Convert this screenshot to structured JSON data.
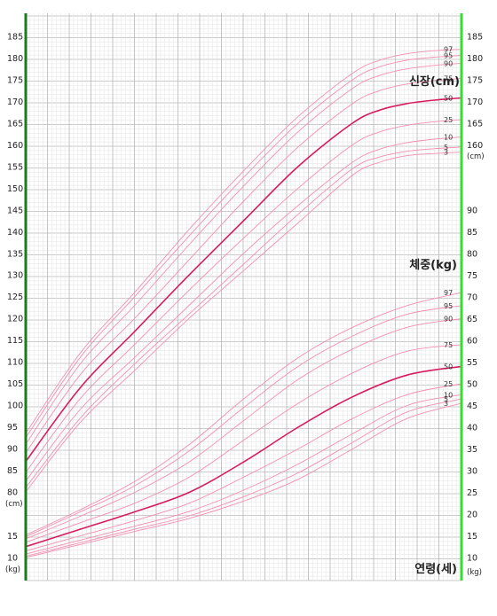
{
  "chart_data": {
    "type": "line",
    "title": "",
    "height_title": "신장(cm)",
    "weight_title": "체중(kg)",
    "age_title": "연령(세)",
    "height_unit": "(cm)",
    "weight_unit": "(kg)",
    "x_range_age_years": [
      2,
      18
    ],
    "height_axis": {
      "range": [
        80,
        185
      ],
      "left_ticks": [
        80,
        85,
        90,
        95,
        100,
        105,
        110,
        115,
        120,
        125,
        130,
        135,
        140,
        145,
        150,
        155,
        160,
        165,
        170,
        175,
        180,
        185
      ],
      "right_ticks": [
        160,
        165,
        170,
        175,
        180,
        185
      ]
    },
    "weight_axis": {
      "range": [
        10,
        90
      ],
      "left_ticks": [
        10,
        15
      ],
      "right_ticks": [
        10,
        15,
        20,
        25,
        30,
        35,
        40,
        45,
        50,
        55,
        60,
        65,
        70,
        75,
        80,
        85,
        90
      ]
    },
    "grid": true,
    "colors": {
      "median": "#d81b60",
      "percentile": "#f48fb1",
      "left_border": "#1b7a1b",
      "right_border": "#33dd33",
      "grid_major": "#b8b8b8",
      "grid_minor": "#e3e3e3"
    },
    "percentile_labels": [
      "3",
      "5",
      "10",
      "25",
      "50",
      "75",
      "90",
      "95",
      "97"
    ],
    "height_series": [
      {
        "name": "3",
        "x": [
          2,
          4,
          6,
          8,
          10,
          12,
          14,
          15,
          16,
          17,
          18
        ],
        "values": [
          80,
          96,
          108,
          120,
          131,
          142,
          153,
          156,
          157.5,
          158,
          158.3
        ]
      },
      {
        "name": "5",
        "x": [
          2,
          4,
          6,
          8,
          10,
          12,
          14,
          15,
          16,
          17,
          18
        ],
        "values": [
          81,
          97,
          109.5,
          121,
          132.5,
          144,
          154.5,
          157.2,
          158.5,
          159.1,
          159.5
        ]
      },
      {
        "name": "10",
        "x": [
          2,
          4,
          6,
          8,
          10,
          12,
          14,
          15,
          16,
          17,
          18
        ],
        "values": [
          82.5,
          99,
          111,
          123,
          135,
          146,
          156,
          159,
          160.5,
          161.3,
          161.8
        ]
      },
      {
        "name": "25",
        "x": [
          2,
          4,
          6,
          8,
          10,
          12,
          14,
          15,
          16,
          17,
          18
        ],
        "values": [
          84.5,
          101.5,
          114,
          126.5,
          138.5,
          150,
          160,
          163,
          164.5,
          165.3,
          165.8
        ]
      },
      {
        "name": "50",
        "x": [
          2,
          4,
          6,
          8,
          10,
          12,
          14,
          15,
          16,
          17,
          18
        ],
        "values": [
          87,
          104,
          117,
          130,
          142.5,
          155,
          165,
          168,
          169.5,
          170.3,
          170.8
        ]
      },
      {
        "name": "75",
        "x": [
          2,
          4,
          6,
          8,
          10,
          12,
          14,
          15,
          16,
          17,
          18
        ],
        "values": [
          89,
          107,
          120,
          133.5,
          147,
          159.5,
          169.5,
          172.5,
          174,
          174.8,
          175.3
        ]
      },
      {
        "name": "90",
        "x": [
          2,
          4,
          6,
          8,
          10,
          12,
          14,
          15,
          16,
          17,
          18
        ],
        "values": [
          91,
          109.5,
          123,
          137,
          150.5,
          163,
          173,
          176,
          177.5,
          178.3,
          178.8
        ]
      },
      {
        "name": "95",
        "x": [
          2,
          4,
          6,
          8,
          10,
          12,
          14,
          15,
          16,
          17,
          18
        ],
        "values": [
          92.5,
          111,
          125,
          139,
          152.5,
          165,
          175,
          178,
          179.5,
          180.2,
          180.6
        ]
      },
      {
        "name": "97",
        "x": [
          2,
          4,
          6,
          8,
          10,
          12,
          14,
          15,
          16,
          17,
          18
        ],
        "values": [
          93.5,
          112,
          126,
          140.5,
          154,
          166.5,
          176.5,
          179.5,
          181,
          181.7,
          182
        ]
      }
    ],
    "weight_series": [
      {
        "name": "3",
        "x": [
          2,
          4,
          6,
          8,
          10,
          12,
          14,
          16,
          18
        ],
        "values": [
          10,
          13,
          16,
          19,
          23,
          28,
          35,
          42,
          45.5
        ]
      },
      {
        "name": "5",
        "x": [
          2,
          4,
          6,
          8,
          10,
          12,
          14,
          16,
          18
        ],
        "values": [
          10.3,
          13.4,
          16.5,
          19.6,
          24,
          29.5,
          36.5,
          43.5,
          46.5
        ]
      },
      {
        "name": "10",
        "x": [
          2,
          4,
          6,
          8,
          10,
          12,
          14,
          16,
          18
        ],
        "values": [
          10.8,
          14,
          17.2,
          20.6,
          25.5,
          31.5,
          38.5,
          45,
          47.5
        ]
      },
      {
        "name": "25",
        "x": [
          2,
          4,
          6,
          8,
          10,
          12,
          14,
          16,
          18
        ],
        "values": [
          11.5,
          15,
          18.5,
          22.5,
          28.5,
          35,
          42,
          47.5,
          50
        ]
      },
      {
        "name": "50",
        "x": [
          2,
          4,
          6,
          8,
          10,
          12,
          14,
          16,
          18
        ],
        "values": [
          12.5,
          16.5,
          20.5,
          25,
          32,
          40,
          47,
          52,
          54
        ]
      },
      {
        "name": "75",
        "x": [
          2,
          4,
          6,
          8,
          10,
          12,
          14,
          16,
          18
        ],
        "values": [
          13.5,
          18,
          22.5,
          28.5,
          37,
          45.5,
          52.5,
          57.5,
          59
        ]
      },
      {
        "name": "90",
        "x": [
          2,
          4,
          6,
          8,
          10,
          12,
          14,
          16,
          18
        ],
        "values": [
          14.3,
          19.5,
          25,
          32,
          41.5,
          51,
          58,
          63,
          65
        ]
      },
      {
        "name": "95",
        "x": [
          2,
          4,
          6,
          8,
          10,
          12,
          14,
          16,
          18
        ],
        "values": [
          14.8,
          20.5,
          26.5,
          34.5,
          44.5,
          54,
          61,
          66,
          68
        ]
      },
      {
        "name": "97",
        "x": [
          2,
          4,
          6,
          8,
          10,
          12,
          14,
          16,
          18
        ],
        "values": [
          15.2,
          21,
          27.5,
          36,
          46.5,
          56,
          63,
          68,
          71
        ]
      }
    ]
  }
}
